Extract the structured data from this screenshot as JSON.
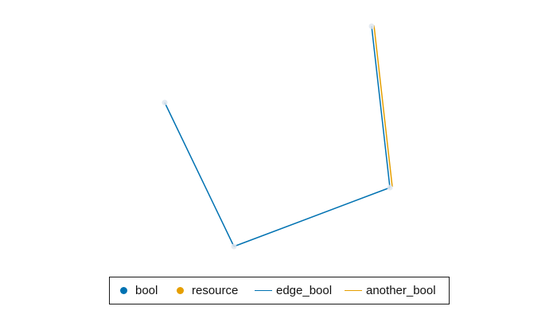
{
  "colors": {
    "bool": "#0072b2",
    "resource": "#e69f00",
    "node_halo": "#dfe6ee"
  },
  "graph": {
    "node_kind": "bool",
    "edge_paths": [
      {
        "series": "edge_bool",
        "nodes": [
          "n1",
          "n2",
          "n3",
          "n4"
        ]
      },
      {
        "series": "another_bool",
        "nodes": [
          "n3",
          "n4"
        ],
        "offset": true
      }
    ]
  },
  "legend": {
    "items": [
      {
        "label": "bool",
        "marker": "dot",
        "color": "#0072b2"
      },
      {
        "label": "resource",
        "marker": "dot",
        "color": "#e69f00"
      },
      {
        "label": "edge_bool",
        "marker": "line",
        "color": "#0072b2"
      },
      {
        "label": "another_bool",
        "marker": "line",
        "color": "#e69f00"
      }
    ]
  }
}
